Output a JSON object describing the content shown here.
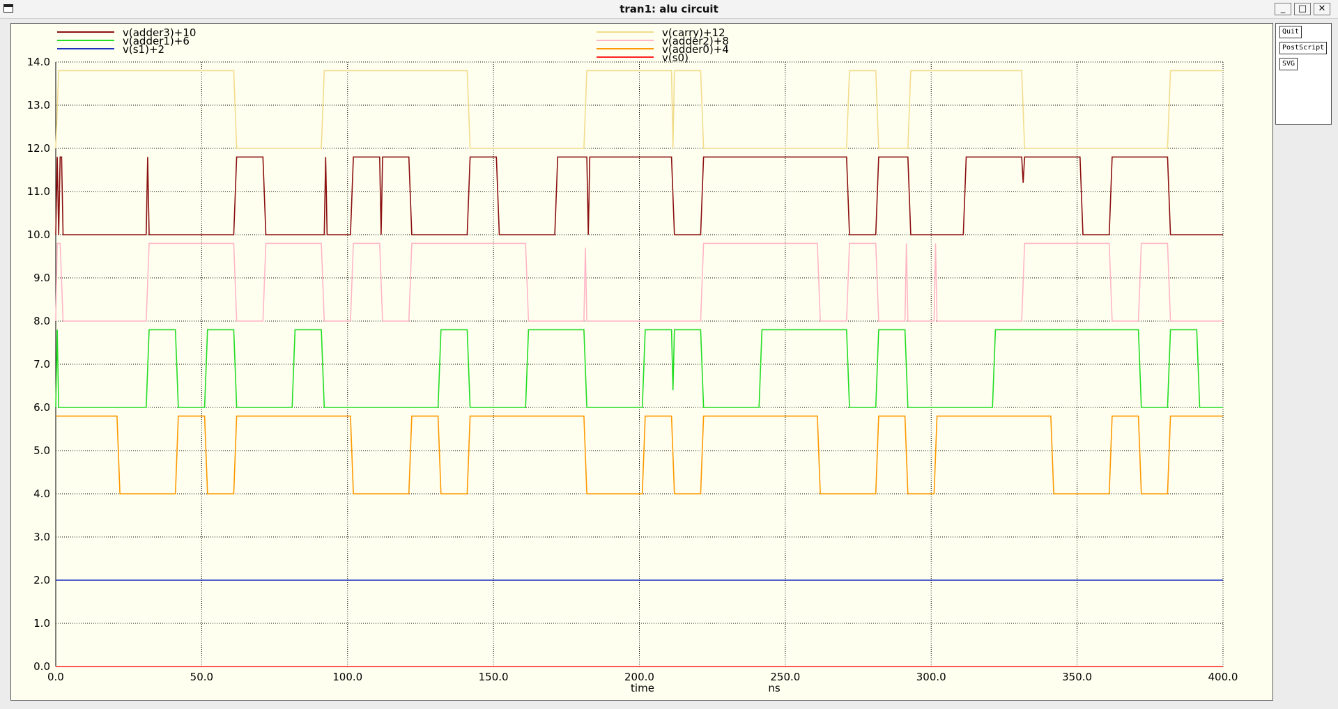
{
  "window": {
    "title": "tran1: alu circuit"
  },
  "window_controls": {
    "minimize": "_",
    "maximize": "□",
    "close": "✕"
  },
  "buttons": {
    "quit": "Quit",
    "postscript": "PostScript",
    "svg": "SVG"
  },
  "chart_data": {
    "type": "line",
    "title": "",
    "xlabel": "time",
    "xunit": "ns",
    "ylabel": "",
    "xlim": [
      0,
      400
    ],
    "ylim": [
      0,
      14
    ],
    "xticks": [
      "0.0",
      "50.0",
      "100.0",
      "150.0",
      "200.0",
      "250.0",
      "300.0",
      "350.0",
      "400.0"
    ],
    "yticks": [
      "0.0",
      "1.0",
      "2.0",
      "3.0",
      "4.0",
      "5.0",
      "6.0",
      "7.0",
      "8.0",
      "9.0",
      "10.0",
      "11.0",
      "12.0",
      "13.0",
      "14.0"
    ],
    "grid": true,
    "legend_position": "top",
    "series": [
      {
        "name": "v(adder3)+10",
        "color": "#8b1010",
        "points": [
          [
            0,
            10
          ],
          [
            0.5,
            11.8
          ],
          [
            1,
            10
          ],
          [
            1.5,
            11.8
          ],
          [
            2,
            11.8
          ],
          [
            2.5,
            10
          ],
          [
            31,
            10
          ],
          [
            31.5,
            11.8
          ],
          [
            32,
            10
          ],
          [
            61,
            10
          ],
          [
            62,
            11.8
          ],
          [
            71,
            11.8
          ],
          [
            72,
            10
          ],
          [
            92,
            10
          ],
          [
            92.5,
            11.8
          ],
          [
            93,
            10
          ],
          [
            101,
            10
          ],
          [
            102,
            11.8
          ],
          [
            111,
            11.8
          ],
          [
            111.5,
            10
          ],
          [
            112,
            11.8
          ],
          [
            121,
            11.8
          ],
          [
            122,
            10
          ],
          [
            141,
            10
          ],
          [
            142,
            11.8
          ],
          [
            151,
            11.8
          ],
          [
            152,
            10
          ],
          [
            171,
            10
          ],
          [
            172,
            11.8
          ],
          [
            182,
            11.8
          ],
          [
            182.5,
            10
          ],
          [
            183,
            11.8
          ],
          [
            211,
            11.8
          ],
          [
            212,
            10
          ],
          [
            221,
            10
          ],
          [
            222,
            11.8
          ],
          [
            271,
            11.8
          ],
          [
            272,
            10
          ],
          [
            281,
            10
          ],
          [
            282,
            11.8
          ],
          [
            292,
            11.8
          ],
          [
            293,
            10
          ],
          [
            311,
            10
          ],
          [
            312,
            11.8
          ],
          [
            331,
            11.8
          ],
          [
            331.5,
            11.2
          ],
          [
            332,
            11.8
          ],
          [
            351,
            11.8
          ],
          [
            352,
            10
          ],
          [
            361,
            10
          ],
          [
            362,
            11.8
          ],
          [
            381,
            11.8
          ],
          [
            382,
            10
          ],
          [
            400,
            10
          ]
        ]
      },
      {
        "name": "v(adder1)+6",
        "color": "#22dd22",
        "points": [
          [
            0,
            6
          ],
          [
            0.5,
            7.8
          ],
          [
            1,
            6
          ],
          [
            31,
            6
          ],
          [
            32,
            7.8
          ],
          [
            41,
            7.8
          ],
          [
            42,
            6
          ],
          [
            51,
            6
          ],
          [
            52,
            7.8
          ],
          [
            61,
            7.8
          ],
          [
            62,
            6
          ],
          [
            81,
            6
          ],
          [
            82,
            7.8
          ],
          [
            91,
            7.8
          ],
          [
            92,
            6
          ],
          [
            131,
            6
          ],
          [
            132,
            7.8
          ],
          [
            141,
            7.8
          ],
          [
            142,
            6
          ],
          [
            161,
            6
          ],
          [
            162,
            7.8
          ],
          [
            181,
            7.8
          ],
          [
            182,
            6
          ],
          [
            201,
            6
          ],
          [
            202,
            7.8
          ],
          [
            211,
            7.8
          ],
          [
            211.5,
            6.4
          ],
          [
            212,
            7.8
          ],
          [
            221,
            7.8
          ],
          [
            222,
            6
          ],
          [
            241,
            6
          ],
          [
            242,
            7.8
          ],
          [
            271,
            7.8
          ],
          [
            272,
            6
          ],
          [
            281,
            6
          ],
          [
            282,
            7.8
          ],
          [
            291,
            7.8
          ],
          [
            292,
            6
          ],
          [
            321,
            6
          ],
          [
            322,
            7.8
          ],
          [
            371,
            7.8
          ],
          [
            372,
            6
          ],
          [
            381,
            6
          ],
          [
            382,
            7.8
          ],
          [
            391,
            7.8
          ],
          [
            392,
            6
          ],
          [
            400,
            6
          ]
        ]
      },
      {
        "name": "v(s1)+2",
        "color": "#1f2fbf",
        "points": [
          [
            0,
            2
          ],
          [
            400,
            2
          ]
        ]
      },
      {
        "name": "v(carry)+12",
        "color": "#f2dc8c",
        "points": [
          [
            0,
            12
          ],
          [
            1,
            13.8
          ],
          [
            61,
            13.8
          ],
          [
            62,
            12
          ],
          [
            91,
            12
          ],
          [
            92,
            13.8
          ],
          [
            141,
            13.8
          ],
          [
            142,
            12
          ],
          [
            181,
            12
          ],
          [
            182,
            13.8
          ],
          [
            211,
            13.8
          ],
          [
            211.5,
            12
          ],
          [
            212,
            13.8
          ],
          [
            221,
            13.8
          ],
          [
            222,
            12
          ],
          [
            271,
            12
          ],
          [
            272,
            13.8
          ],
          [
            281,
            13.8
          ],
          [
            282,
            12
          ],
          [
            292,
            12
          ],
          [
            293,
            13.8
          ],
          [
            331,
            13.8
          ],
          [
            332,
            12
          ],
          [
            381,
            12
          ],
          [
            382,
            13.8
          ],
          [
            400,
            13.8
          ]
        ]
      },
      {
        "name": "v(adder2)+8",
        "color": "#ffb6c6",
        "points": [
          [
            0,
            8
          ],
          [
            0.5,
            9.8
          ],
          [
            1.5,
            9.8
          ],
          [
            2.5,
            8
          ],
          [
            31,
            8
          ],
          [
            32,
            9.8
          ],
          [
            61,
            9.8
          ],
          [
            62,
            8
          ],
          [
            71,
            8
          ],
          [
            72,
            9.8
          ],
          [
            91,
            9.8
          ],
          [
            92,
            8
          ],
          [
            101,
            8
          ],
          [
            102,
            9.8
          ],
          [
            111,
            9.8
          ],
          [
            112,
            8
          ],
          [
            121,
            8
          ],
          [
            122,
            9.8
          ],
          [
            161,
            9.8
          ],
          [
            162,
            8
          ],
          [
            181,
            8
          ],
          [
            181.5,
            9.7
          ],
          [
            182,
            8
          ],
          [
            221,
            8
          ],
          [
            222,
            9.8
          ],
          [
            261,
            9.8
          ],
          [
            262,
            8
          ],
          [
            271,
            8
          ],
          [
            272,
            9.8
          ],
          [
            281,
            9.8
          ],
          [
            282,
            8
          ],
          [
            291,
            8
          ],
          [
            291.5,
            9.8
          ],
          [
            292,
            8
          ],
          [
            301,
            8
          ],
          [
            301.5,
            9.8
          ],
          [
            302,
            8
          ],
          [
            331,
            8
          ],
          [
            332,
            9.8
          ],
          [
            361,
            9.8
          ],
          [
            362,
            8
          ],
          [
            371,
            8
          ],
          [
            372,
            9.8
          ],
          [
            381,
            9.8
          ],
          [
            382,
            8
          ],
          [
            400,
            8
          ]
        ]
      },
      {
        "name": "v(adder0)+4",
        "color": "#ff9900",
        "points": [
          [
            0,
            5.8
          ],
          [
            21,
            5.8
          ],
          [
            22,
            4
          ],
          [
            41,
            4
          ],
          [
            42,
            5.8
          ],
          [
            51,
            5.8
          ],
          [
            52,
            4
          ],
          [
            61,
            4
          ],
          [
            62,
            5.8
          ],
          [
            101,
            5.8
          ],
          [
            102,
            4
          ],
          [
            121,
            4
          ],
          [
            122,
            5.8
          ],
          [
            131,
            5.8
          ],
          [
            132,
            4
          ],
          [
            141,
            4
          ],
          [
            142,
            5.8
          ],
          [
            181,
            5.8
          ],
          [
            182,
            4
          ],
          [
            201,
            4
          ],
          [
            202,
            5.8
          ],
          [
            211,
            5.8
          ],
          [
            212,
            4
          ],
          [
            221,
            4
          ],
          [
            222,
            5.8
          ],
          [
            261,
            5.8
          ],
          [
            262,
            4
          ],
          [
            281,
            4
          ],
          [
            282,
            5.8
          ],
          [
            291,
            5.8
          ],
          [
            292,
            4
          ],
          [
            301,
            4
          ],
          [
            302,
            5.8
          ],
          [
            341,
            5.8
          ],
          [
            342,
            4
          ],
          [
            361,
            4
          ],
          [
            362,
            5.8
          ],
          [
            371,
            5.8
          ],
          [
            372,
            4
          ],
          [
            381,
            4
          ],
          [
            382,
            5.8
          ],
          [
            400,
            5.8
          ]
        ]
      },
      {
        "name": "v(s0)",
        "color": "#ff2020",
        "points": [
          [
            0,
            0
          ],
          [
            400,
            0
          ]
        ]
      }
    ]
  }
}
